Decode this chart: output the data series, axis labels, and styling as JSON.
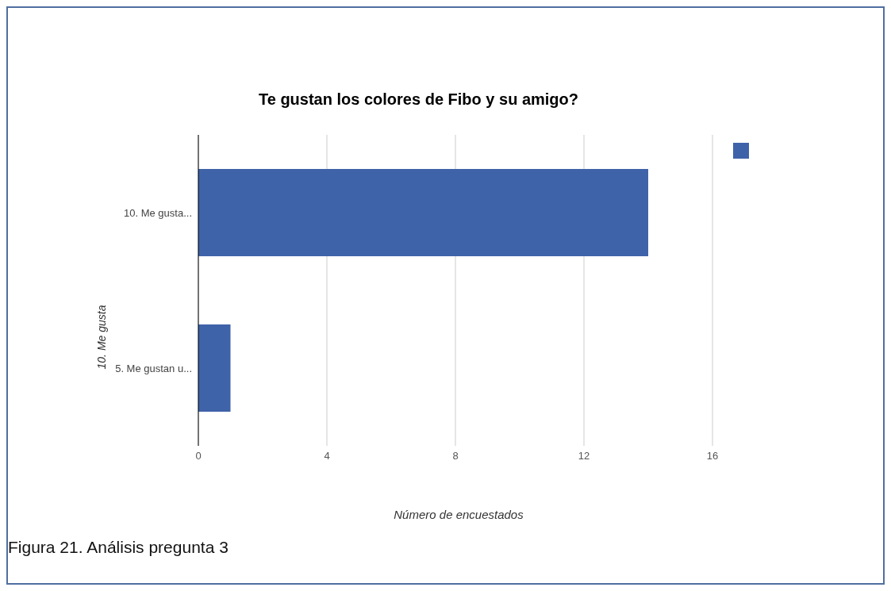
{
  "chart_data": {
    "type": "bar",
    "orientation": "horizontal",
    "title": "Te gustan los colores de Fibo y su amigo?",
    "categories": [
      "10.  Me gusta...",
      "5. Me gustan u..."
    ],
    "series": [
      {
        "color": "#3f63a9",
        "values": [
          14,
          1
        ]
      }
    ],
    "xlim": [
      0,
      16
    ],
    "xticks": [
      0,
      4,
      8,
      12,
      16
    ],
    "grid": "x",
    "xlabel": "Número de encuestados",
    "ylabel": "10. Me gusta",
    "annotations": [
      "Figura 21. Análisis pregunta 3"
    ]
  }
}
